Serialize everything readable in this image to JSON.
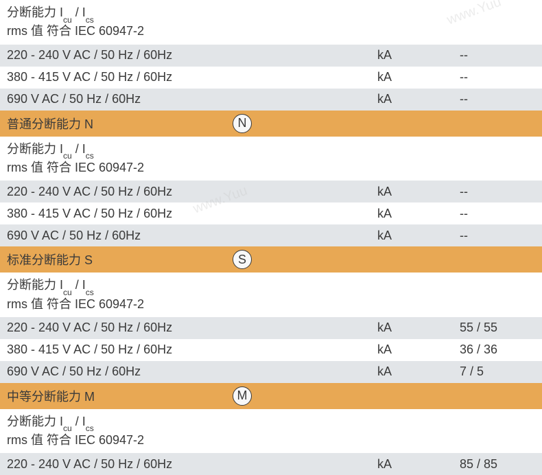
{
  "colors": {
    "row_gray": "#e2e5e8",
    "row_white": "#ffffff",
    "row_orange": "#e8a854",
    "text": "#3a3a3a"
  },
  "top_header": {
    "line1_prefix": "分断能力 I",
    "line1_sub1": "cu",
    "line1_mid": " / I",
    "line1_sub2": "cs",
    "line2": "rms 值 符合 IEC 60947-2"
  },
  "section1": {
    "rows": [
      {
        "label": "220 - 240 V AC / 50 Hz / 60Hz",
        "unit": "kA",
        "value": "--"
      },
      {
        "label": "380 - 415 V AC / 50 Hz / 60Hz",
        "unit": "kA",
        "value": "--"
      },
      {
        "label": "690 V AC / 50 Hz / 60Hz",
        "unit": "kA",
        "value": "--"
      }
    ]
  },
  "section2": {
    "title": "普通分断能力 N",
    "icon": "N",
    "subheader": {
      "line1_prefix": "分断能力 I",
      "line1_sub1": "cu",
      "line1_mid": " / I",
      "line1_sub2": "cs",
      "line2": "rms 值 符合 IEC 60947-2"
    },
    "rows": [
      {
        "label": "220 - 240 V AC / 50 Hz / 60Hz",
        "unit": "kA",
        "value": "--"
      },
      {
        "label": "380 - 415 V AC / 50 Hz / 60Hz",
        "unit": "kA",
        "value": "--"
      },
      {
        "label": "690 V AC / 50 Hz / 60Hz",
        "unit": "kA",
        "value": "--"
      }
    ]
  },
  "section3": {
    "title": "标准分断能力 S",
    "icon": "S",
    "subheader": {
      "line1_prefix": "分断能力 I",
      "line1_sub1": "cu",
      "line1_mid": " / I",
      "line1_sub2": "cs",
      "line2": "rms 值 符合 IEC 60947-2"
    },
    "rows": [
      {
        "label": "220 - 240 V AC / 50 Hz / 60Hz",
        "unit": "kA",
        "value": "55 / 55"
      },
      {
        "label": "380 - 415 V AC / 50 Hz / 60Hz",
        "unit": "kA",
        "value": "36 / 36"
      },
      {
        "label": "690 V AC / 50 Hz / 60Hz",
        "unit": "kA",
        "value": "7 / 5"
      }
    ]
  },
  "section4": {
    "title": "中等分断能力 M",
    "icon": "M",
    "subheader": {
      "line1_prefix": "分断能力 I",
      "line1_sub1": "cu",
      "line1_mid": " / I",
      "line1_sub2": "cs",
      "line2": "rms 值 符合 IEC 60947-2"
    },
    "rows": [
      {
        "label": "220 - 240 V AC / 50 Hz / 60Hz",
        "unit": "kA",
        "value": "85 / 85"
      }
    ]
  },
  "watermark": "www.Yuu"
}
